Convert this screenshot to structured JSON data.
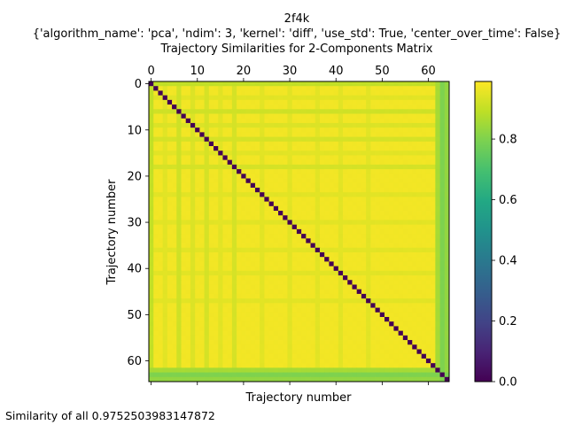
{
  "chart_data": {
    "type": "heatmap",
    "suptitle": "2f4k",
    "subtitle": "{'algorithm_name': 'pca', 'ndim': 3, 'kernel': 'diff', 'use_std': True, 'center_over_time': False}",
    "title": "Trajectory Similarities for 2-Components Matrix",
    "xlabel": "Trajectory number",
    "ylabel": "Trajectory number",
    "n": 65,
    "x_ticks": [
      0,
      10,
      20,
      30,
      40,
      50,
      60
    ],
    "y_ticks": [
      0,
      10,
      20,
      30,
      40,
      50,
      60
    ],
    "xlim": [
      -0.5,
      64.5
    ],
    "ylim": [
      64.5,
      -0.5
    ],
    "x_tick_position": "top",
    "colormap": "viridis",
    "colorbar": {
      "range": [
        0.0,
        1.0
      ],
      "ticks": [
        "0.0",
        "0.2",
        "0.4",
        "0.6",
        "0.8"
      ],
      "display_max": 0.99
    },
    "diagonal_value": 0.0,
    "typical_offdiagonal_value": 0.975,
    "lower_similarity_rows": [
      {
        "index": 0,
        "value": 0.9
      },
      {
        "index": 3,
        "value": 0.95
      },
      {
        "index": 6,
        "value": 0.92
      },
      {
        "index": 9,
        "value": 0.94
      },
      {
        "index": 12,
        "value": 0.93
      },
      {
        "index": 15,
        "value": 0.95
      },
      {
        "index": 18,
        "value": 0.93
      },
      {
        "index": 24,
        "value": 0.95
      },
      {
        "index": 30,
        "value": 0.95
      },
      {
        "index": 36,
        "value": 0.95
      },
      {
        "index": 41,
        "value": 0.95
      },
      {
        "index": 47,
        "value": 0.95
      },
      {
        "index": 62,
        "value": 0.86
      },
      {
        "index": 63,
        "value": 0.8
      },
      {
        "index": 64,
        "value": 0.83
      }
    ]
  },
  "footer_text": "Similarity of all 0.9752503983147872"
}
